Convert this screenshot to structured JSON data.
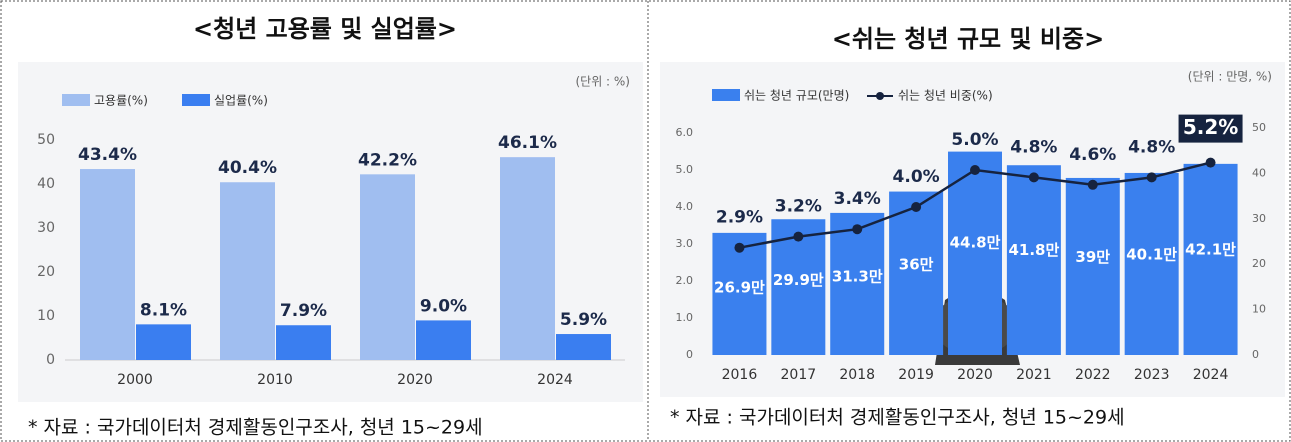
{
  "chart_data": [
    {
      "type": "bar",
      "title": "<청년 고용률 및 실업률>",
      "unit_note": "(단위 : %)",
      "source": "* 자료 : 국가데이터처 경제활동인구조사, 청년 15~29세",
      "categories": [
        "2000",
        "2010",
        "2020",
        "2024"
      ],
      "series": [
        {
          "name": "고용률(%)",
          "color": "#a0bef0",
          "values": [
            43.4,
            40.4,
            42.2,
            46.1
          ],
          "value_labels": [
            "43.4%",
            "40.4%",
            "42.2%",
            "46.1%"
          ]
        },
        {
          "name": "실업률(%)",
          "color": "#3a7ef0",
          "values": [
            8.1,
            7.9,
            9.0,
            5.9
          ],
          "value_labels": [
            "8.1%",
            "7.9%",
            "9.0%",
            "5.9%"
          ]
        }
      ],
      "ylim": [
        0,
        50
      ],
      "yticks": [
        0,
        10,
        20,
        30,
        40,
        50
      ],
      "grid": false
    },
    {
      "type": "bar-line",
      "title": "<쉬는 청년 규모 및 비중>",
      "unit_note": "(단위 : 만명, %)",
      "source": "* 자료 : 국가데이터처 경제활동인구조사, 청년 15~29세",
      "categories": [
        "2016",
        "2017",
        "2018",
        "2019",
        "2020",
        "2021",
        "2022",
        "2023",
        "2024"
      ],
      "series": [
        {
          "name": "쉬는 청년 규모(만명)",
          "type": "bar",
          "axis": "y2",
          "color": "#3a80ee",
          "values": [
            26.9,
            29.9,
            31.3,
            36,
            44.8,
            41.8,
            39,
            40.1,
            42.1
          ],
          "value_labels": [
            "26.9만",
            "29.9만",
            "31.3만",
            "36만",
            "44.8만",
            "41.8만",
            "39만",
            "40.1만",
            "42.1만"
          ]
        },
        {
          "name": "쉬는 청년 비중(%)",
          "type": "line",
          "color": "#16233f",
          "values": [
            2.9,
            3.2,
            3.4,
            4.0,
            5.0,
            4.8,
            4.6,
            4.8,
            5.2
          ],
          "value_labels": [
            "2.9%",
            "3.2%",
            "3.4%",
            "4.0%",
            "5.0%",
            "4.8%",
            "4.6%",
            "4.8%",
            "5.2%"
          ]
        }
      ],
      "ylim": [
        0,
        6
      ],
      "yticks": [
        0,
        {
          "value": 1,
          "label": "1.0"
        },
        {
          "value": 2,
          "label": "2.0"
        },
        {
          "value": 3,
          "label": "3.0"
        },
        {
          "value": 4,
          "label": "4.0"
        },
        {
          "value": 5,
          "label": "5.0"
        },
        {
          "value": 6,
          "label": "6.0"
        }
      ],
      "y2lim": [
        0,
        50
      ],
      "y2ticks": [
        0,
        10,
        20,
        30,
        40,
        50
      ],
      "grid": false
    }
  ]
}
